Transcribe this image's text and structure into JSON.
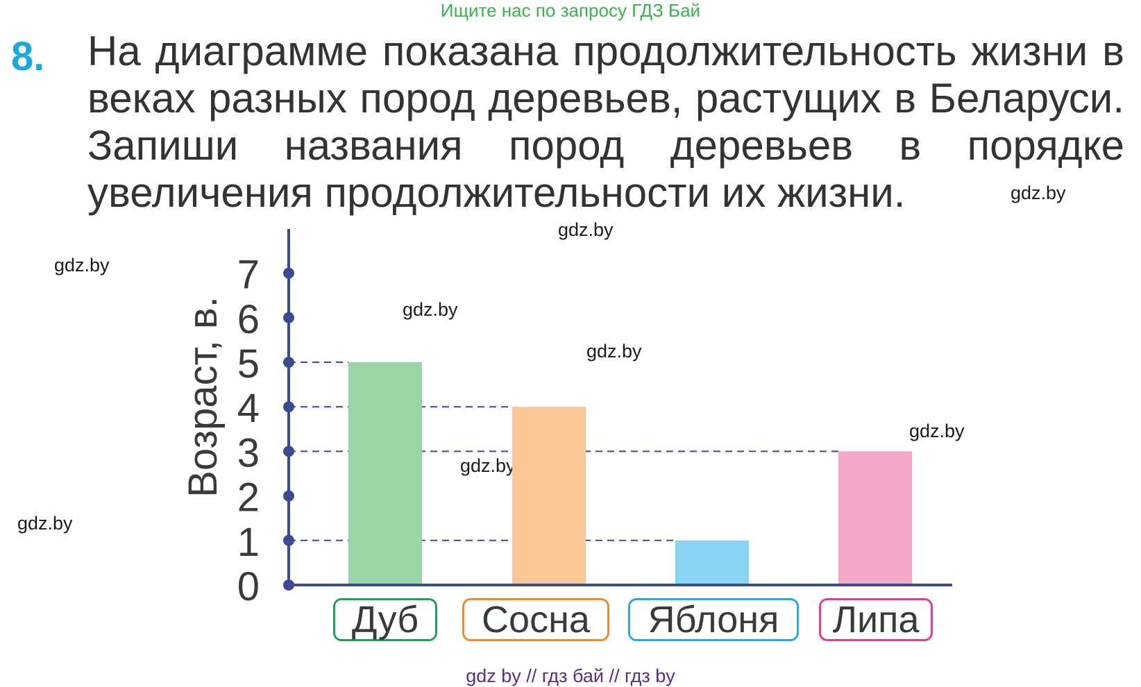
{
  "header": {
    "banner": "Ищите нас по запросу ГДЗ Бай"
  },
  "task": {
    "number": "8.",
    "text": "На диаграмме показана продолжительность жизни в веках разных пород деревьев, растущих в Беларуси. Запиши названия пород деревьев в порядке увеличения продолжительности их жизни."
  },
  "watermarks": [
    "gdz.by",
    "gdz.by",
    "gdz.by",
    "gdz.by",
    "gdz.by",
    "gdz.by",
    "gdz.by",
    "gdz.by"
  ],
  "footer": {
    "text": "gdz by  //  гдз бай  //  гдз by"
  },
  "colors": {
    "axis": "#3a4a93",
    "number": "#1ba8df",
    "banner": "#36b34a",
    "footer": "#5b2d82"
  },
  "chart_data": {
    "type": "bar",
    "ylabel": "Возраст, в.",
    "ylim": [
      0,
      7
    ],
    "yticks": [
      "0",
      "1",
      "2",
      "3",
      "4",
      "5",
      "6",
      "7"
    ],
    "categories": [
      "Дуб",
      "Сосна",
      "Яблоня",
      "Липа"
    ],
    "values": [
      5,
      4,
      1,
      3
    ],
    "bar_colors": [
      "#9ad3a5",
      "#fac796",
      "#8ad3f3",
      "#f2a7c8"
    ],
    "label_border_colors": [
      "#1fa05a",
      "#ef8a2e",
      "#29a8dc",
      "#e23b93"
    ],
    "grid": "dashed guides from axis to bar tops"
  }
}
